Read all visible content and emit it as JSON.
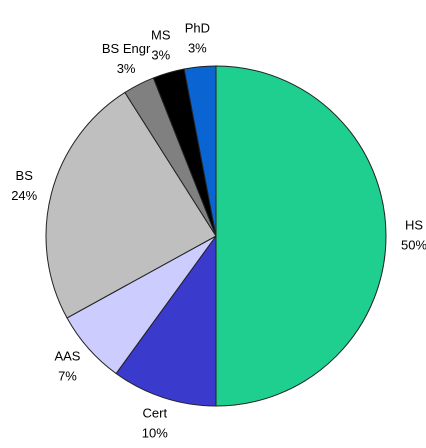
{
  "chart_data": {
    "type": "pie",
    "categories": [
      "HS",
      "Cert",
      "AAS",
      "BS",
      "BS Engr",
      "MS",
      "PhD"
    ],
    "values": [
      50,
      10,
      7,
      24,
      3,
      3,
      3
    ],
    "value_labels": [
      "50%",
      "10%",
      "7%",
      "24%",
      "3%",
      "3%",
      "3%"
    ],
    "colors": [
      "#1ecf8f",
      "#3a3acc",
      "#ccccff",
      "#bfbfbf",
      "#808080",
      "#000000",
      "#0a64d2"
    ]
  }
}
